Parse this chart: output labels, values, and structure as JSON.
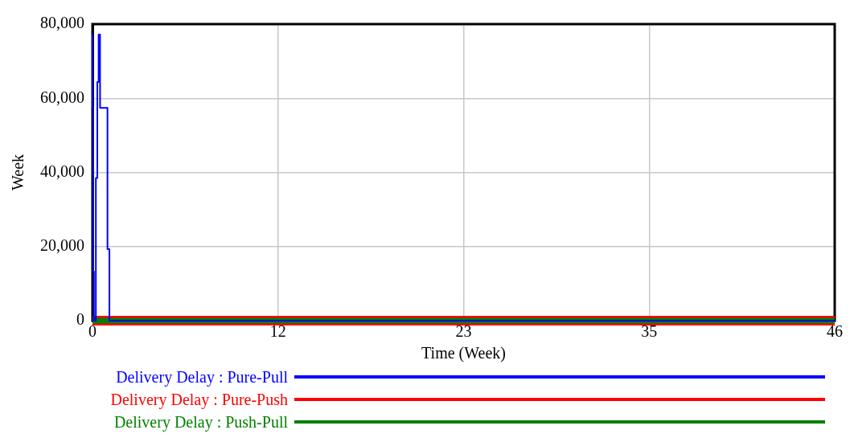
{
  "chart_data": {
    "type": "step",
    "xlabel": "Time (Week)",
    "ylabel": "Week",
    "xlim": [
      0,
      46
    ],
    "xticks": [
      0,
      {
        "value": 11.5,
        "label": "12"
      },
      23,
      {
        "value": 34.5,
        "label": "35"
      },
      46
    ],
    "ylim": [
      0,
      80000
    ],
    "yticks": [
      0,
      {
        "value": 20000,
        "label": "20,000"
      },
      {
        "value": 40000,
        "label": "40,000"
      },
      {
        "value": 60000,
        "label": "60,000"
      },
      {
        "value": 80000,
        "label": "80,000"
      }
    ],
    "grid": true,
    "legend": "bottom",
    "series": [
      {
        "name": "Delivery Delay : Pure-Pull",
        "color": "#0000ff",
        "x": [
          0,
          0.05,
          0.09,
          0.21,
          0.3,
          0.38,
          0.47,
          0.93,
          1.05,
          1.14,
          46
        ],
        "values": [
          77200,
          57800,
          13300,
          0,
          38500,
          64400,
          77200,
          57400,
          19300,
          0,
          0
        ]
      },
      {
        "name": "Delivery Delay : Pure-Push",
        "color": "#ff0000",
        "x": [
          0,
          46
        ],
        "values": [
          0,
          0
        ]
      },
      {
        "name": "Delivery Delay : Push-Pull",
        "color": "#008000",
        "x": [
          0,
          46
        ],
        "values": [
          0,
          0
        ]
      }
    ]
  }
}
